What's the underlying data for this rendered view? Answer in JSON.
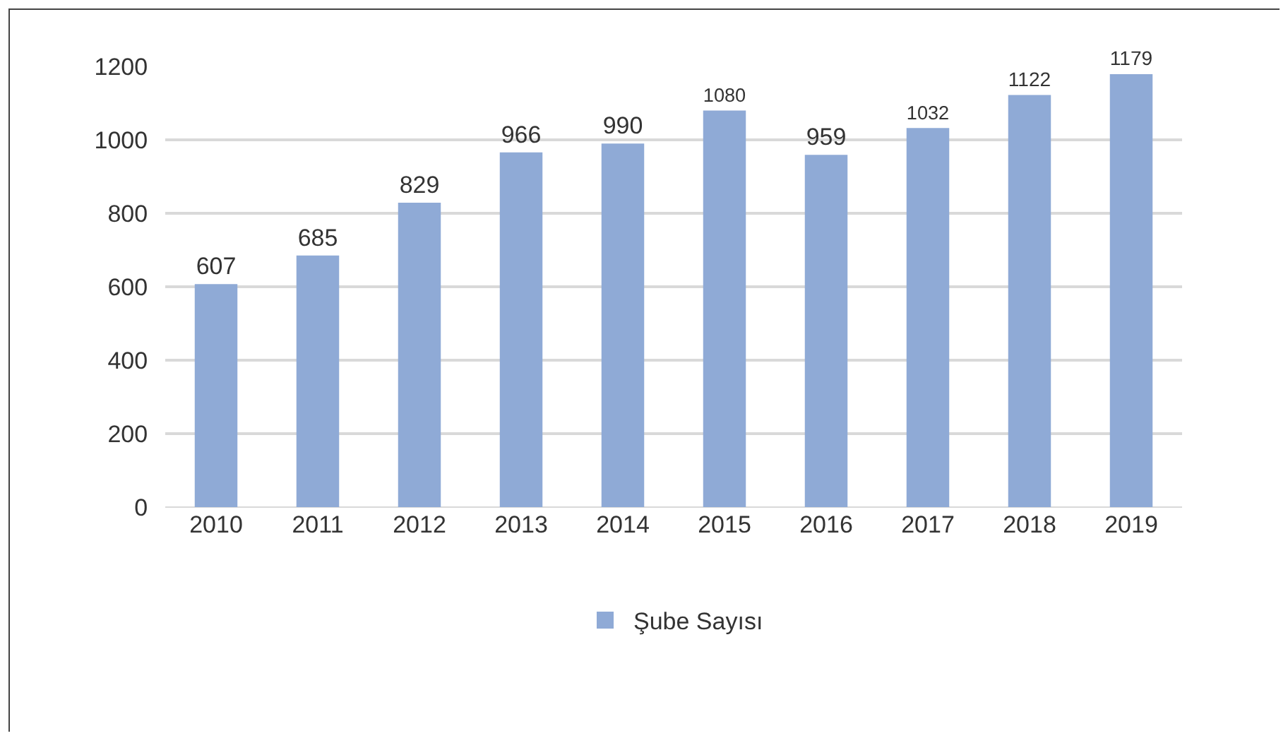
{
  "chart_data": {
    "type": "bar",
    "categories": [
      "2010",
      "2011",
      "2012",
      "2013",
      "2014",
      "2015",
      "2016",
      "2017",
      "2018",
      "2019"
    ],
    "series": [
      {
        "name": "Şube Sayısı",
        "color": "#8faad6",
        "values": [
          607,
          685,
          829,
          966,
          990,
          1080,
          959,
          1032,
          1122,
          1179
        ]
      }
    ],
    "ylim": [
      0,
      1200
    ],
    "yticks": [
      0,
      200,
      400,
      600,
      800,
      1000,
      1200
    ],
    "grid": "y",
    "legend": "bottom",
    "data_labels": true
  }
}
